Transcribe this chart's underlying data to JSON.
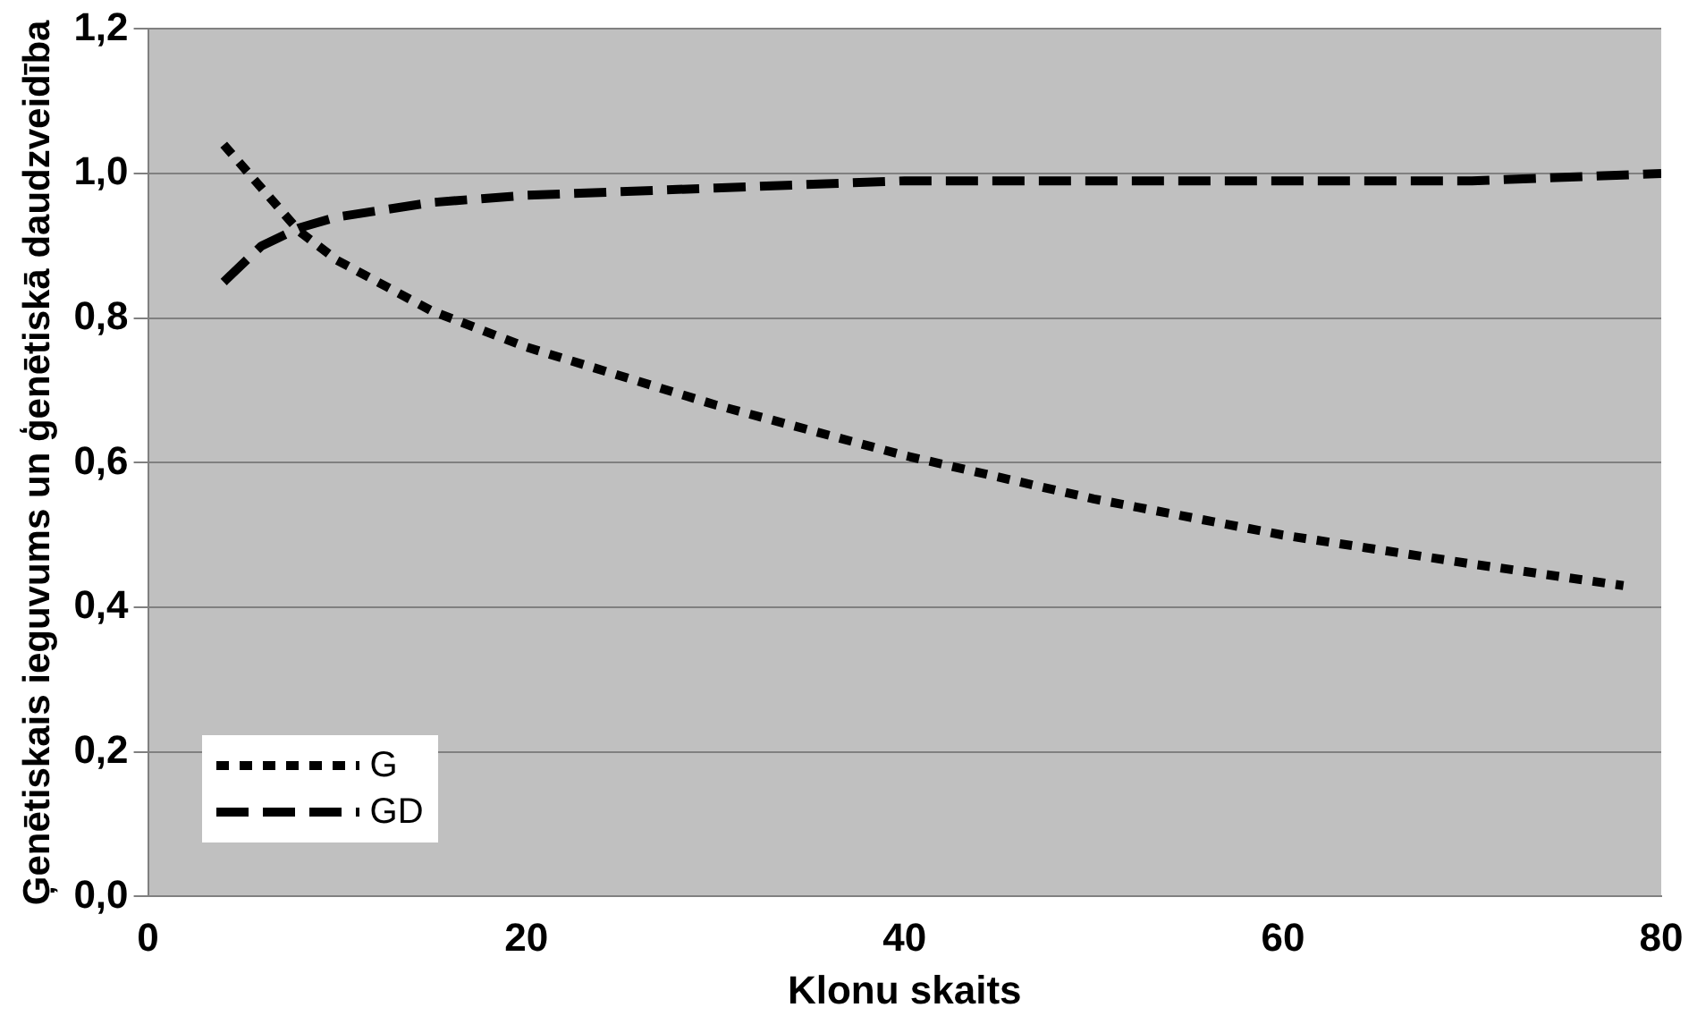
{
  "chart_data": {
    "type": "line",
    "xlabel": "Klonu skaits",
    "ylabel": "Ģenētiskais ieguvums un ģenētiskā daudzveidība",
    "xlim": [
      0,
      80
    ],
    "xticks": [
      0,
      20,
      40,
      60,
      80
    ],
    "ylim": [
      0,
      1.2
    ],
    "yticks": [
      {
        "value": 0,
        "label": "0,0"
      },
      {
        "value": 0.2,
        "label": "0,2"
      },
      {
        "value": 0.4,
        "label": "0,4"
      },
      {
        "value": 0.6,
        "label": "0,6"
      },
      {
        "value": 0.8,
        "label": "0,8"
      },
      {
        "value": 1,
        "label": "1,0"
      },
      {
        "value": 1.2,
        "label": "1,2"
      }
    ],
    "grid": "y",
    "legend": "bottom left",
    "marker": "none",
    "series": [
      {
        "name": "G",
        "color": "#000000",
        "line_style": "dotted",
        "x": [
          4,
          6,
          8,
          10,
          15,
          20,
          30,
          40,
          50,
          60,
          70,
          78
        ],
        "values": [
          1.04,
          0.98,
          0.92,
          0.88,
          0.81,
          0.76,
          0.68,
          0.61,
          0.55,
          0.5,
          0.46,
          0.43
        ]
      },
      {
        "name": "GD",
        "color": "#000000",
        "line_style": "dashed",
        "x": [
          4,
          6,
          8,
          10,
          15,
          20,
          30,
          40,
          50,
          60,
          70,
          80
        ],
        "values": [
          0.85,
          0.9,
          0.925,
          0.94,
          0.96,
          0.97,
          0.98,
          0.99,
          0.99,
          0.99,
          0.99,
          1.0
        ]
      }
    ]
  }
}
